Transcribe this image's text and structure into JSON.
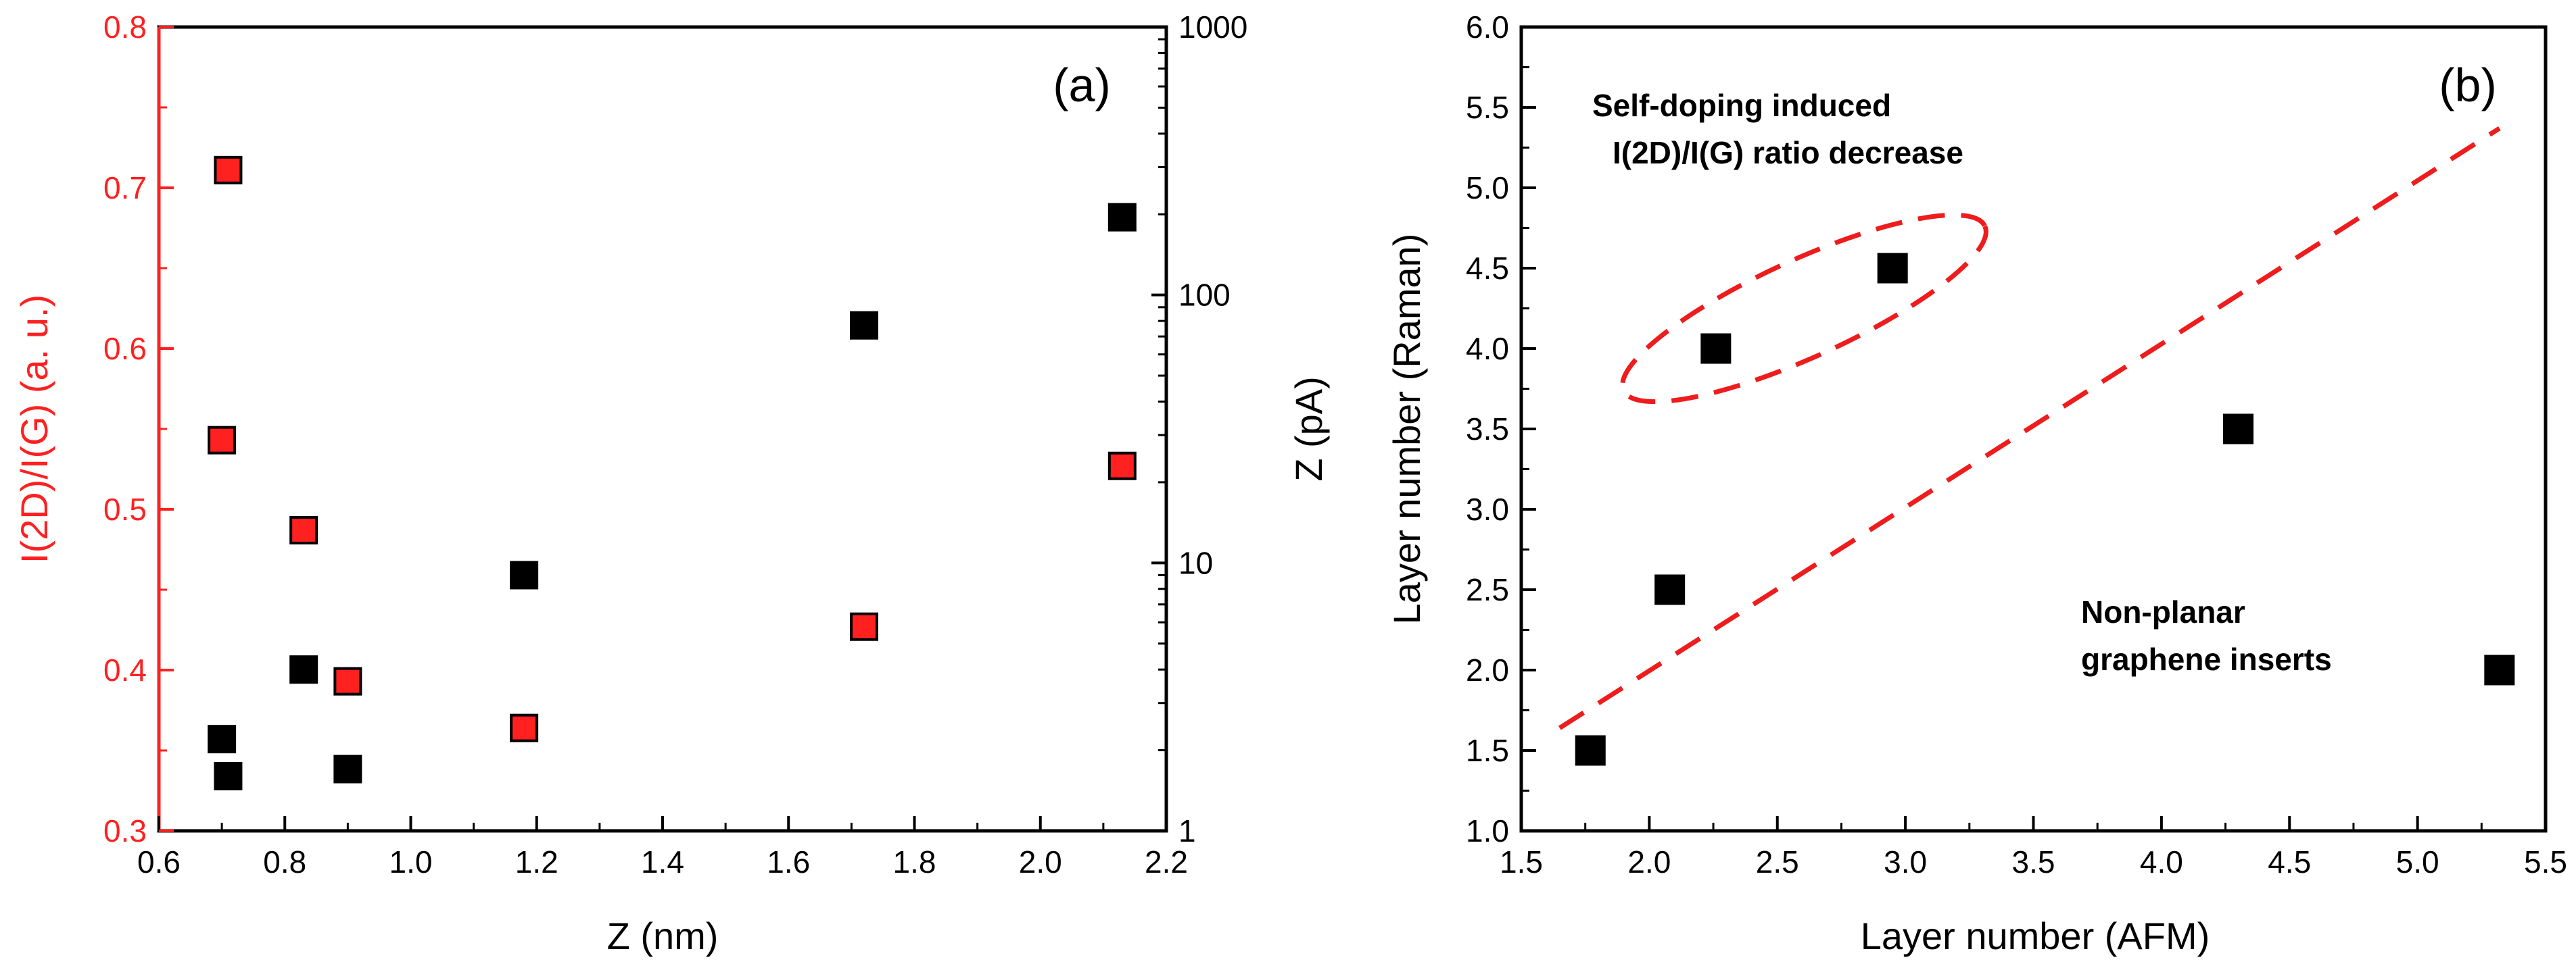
{
  "colors": {
    "red": "#ff2020",
    "black": "#000000",
    "dash": "#ee1c1c"
  },
  "chart_data": [
    {
      "panel": "(a)",
      "type": "scatter",
      "xlabel": "Z (nm)",
      "ylabel_left": "I(2D)/I(G) (a. u.)",
      "ylabel_right": "Z (pA)",
      "xlim": [
        0.6,
        2.2
      ],
      "ylim_left": [
        0.3,
        0.8
      ],
      "ylim_right": [
        1,
        1000
      ],
      "yscale_right": "log",
      "x_ticks": [
        "0.6",
        "0.8",
        "1.0",
        "1.2",
        "1.4",
        "1.6",
        "1.8",
        "2.0",
        "2.2"
      ],
      "y_left_ticks": [
        "0.3",
        "0.4",
        "0.5",
        "0.6",
        "0.7",
        "0.8"
      ],
      "y_right_ticks": [
        "1",
        "10",
        "100",
        "1000"
      ],
      "series": [
        {
          "name": "I(2D)/I(G)",
          "axis": "left",
          "color": "red",
          "points": [
            [
              0.71,
              0.711
            ],
            [
              0.7,
              0.543
            ],
            [
              0.83,
              0.487
            ],
            [
              0.9,
              0.393
            ],
            [
              1.18,
              0.364
            ],
            [
              1.72,
              0.427
            ],
            [
              2.13,
              0.527
            ]
          ]
        },
        {
          "name": "Z (pA)",
          "axis": "right",
          "color": "black",
          "points": [
            [
              0.7,
              2.2
            ],
            [
              0.71,
              1.6
            ],
            [
              0.83,
              4.0
            ],
            [
              0.9,
              1.7
            ],
            [
              1.18,
              9.0
            ],
            [
              1.72,
              77
            ],
            [
              2.13,
              195
            ]
          ]
        }
      ]
    },
    {
      "panel": "(b)",
      "type": "scatter",
      "xlabel": "Layer number (AFM)",
      "ylabel": "Layer number (Raman)",
      "xlim": [
        1.5,
        5.5
      ],
      "ylim": [
        1.0,
        6.0
      ],
      "x_ticks": [
        "1.5",
        "2.0",
        "2.5",
        "3.0",
        "3.5",
        "4.0",
        "4.5",
        "5.0",
        "5.5"
      ],
      "y_ticks": [
        "1.0",
        "1.5",
        "2.0",
        "2.5",
        "3.0",
        "3.5",
        "4.0",
        "4.5",
        "5.0",
        "5.5",
        "6.0"
      ],
      "series": [
        {
          "name": "Layer number",
          "color": "black",
          "points": [
            [
              1.77,
              1.5
            ],
            [
              2.08,
              2.5
            ],
            [
              2.26,
              4.0
            ],
            [
              2.95,
              4.5
            ],
            [
              4.3,
              3.5
            ],
            [
              5.32,
              2.0
            ]
          ]
        }
      ],
      "guide_line": {
        "style": "dashed",
        "color": "red",
        "from": [
          1.65,
          1.64
        ],
        "to": [
          5.32,
          5.37
        ]
      },
      "ellipse": {
        "style": "dashed",
        "color": "red",
        "encloses": [
          [
            2.26,
            4.0
          ],
          [
            2.95,
            4.5
          ]
        ]
      },
      "annotations": [
        {
          "lines": [
            "Self-doping induced",
            "I(2D)/I(G) ratio decrease"
          ],
          "at": [
            1.72,
            5.4
          ]
        },
        {
          "lines": [
            "Non-planar",
            "graphene inserts"
          ],
          "at": [
            4.05,
            2.25
          ]
        }
      ]
    }
  ]
}
